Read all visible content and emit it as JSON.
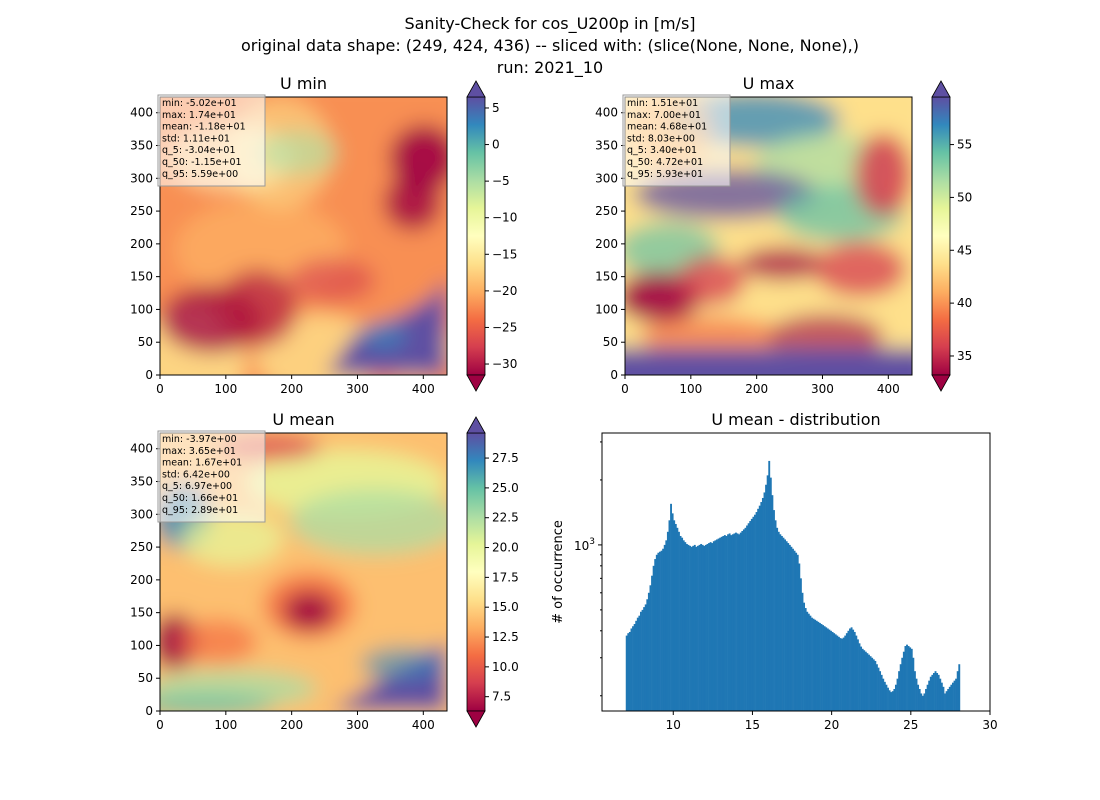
{
  "suptitle": [
    "Sanity-Check for cos_U200p in [m/s]",
    "original data shape: (249, 424, 436) -- sliced with: (slice(None, None, None),)",
    "run: 2021_10"
  ],
  "chart_data": [
    {
      "type": "heatmap",
      "title": "U min",
      "colormap": "Spectral",
      "xlim": [
        0,
        436
      ],
      "ylim": [
        0,
        424
      ],
      "xticks": [
        0,
        100,
        200,
        300,
        400
      ],
      "yticks": [
        0,
        50,
        100,
        150,
        200,
        250,
        300,
        350,
        400
      ],
      "colorbar": {
        "range": [
          -31.5,
          6.5
        ],
        "ticks": [
          5,
          0,
          -5,
          -10,
          -15,
          -20,
          -25,
          -30
        ],
        "tick_labels": [
          "5",
          "0",
          "−5",
          "−10",
          "−15",
          "−20",
          "−25",
          "−30"
        ],
        "extend": "both"
      },
      "stats": [
        "min: -5.02e+01",
        "max: 1.74e+01",
        "mean: -1.18e+01",
        "std: 1.11e+01",
        "q_5: -3.04e+01",
        "q_50: -1.15e+01",
        "q_95: 5.59e+00"
      ]
    },
    {
      "type": "heatmap",
      "title": "U max",
      "colormap": "Spectral",
      "xlim": [
        0,
        436
      ],
      "ylim": [
        0,
        424
      ],
      "xticks": [
        0,
        100,
        200,
        300,
        400
      ],
      "yticks": [
        0,
        50,
        100,
        150,
        200,
        250,
        300,
        350,
        400
      ],
      "colorbar": {
        "range": [
          33.2,
          59.5
        ],
        "ticks": [
          55,
          50,
          45,
          40,
          35
        ],
        "tick_labels": [
          "55",
          "50",
          "45",
          "40",
          "35"
        ],
        "extend": "both"
      },
      "stats": [
        "min: 1.51e+01",
        "max: 7.00e+01",
        "mean: 4.68e+01",
        "std: 8.03e+00",
        "q_5: 3.40e+01",
        "q_50: 4.72e+01",
        "q_95: 5.93e+01"
      ]
    },
    {
      "type": "heatmap",
      "title": "U mean",
      "colormap": "Spectral",
      "xlim": [
        0,
        436
      ],
      "ylim": [
        0,
        424
      ],
      "xticks": [
        0,
        100,
        200,
        300,
        400
      ],
      "yticks": [
        0,
        50,
        100,
        150,
        200,
        250,
        300,
        350,
        400
      ],
      "colorbar": {
        "range": [
          6.3,
          29.6
        ],
        "ticks": [
          27.5,
          25.0,
          22.5,
          20.0,
          17.5,
          15.0,
          12.5,
          10.0,
          7.5
        ],
        "tick_labels": [
          "27.5",
          "25.0",
          "22.5",
          "20.0",
          "17.5",
          "15.0",
          "12.5",
          "10.0",
          "7.5"
        ],
        "extend": "both"
      },
      "stats": [
        "min: -3.97e+00",
        "max: 3.65e+01",
        "mean: 1.67e+01",
        "std: 6.42e+00",
        "q_5: 6.97e+00",
        "q_50: 1.66e+01",
        "q_95: 2.89e+01"
      ]
    },
    {
      "type": "bar",
      "title": "U mean - distribution",
      "ylabel": "# of occurrence",
      "xlabel": "",
      "yscale": "log",
      "xlim": [
        5.5,
        30
      ],
      "ylim": [
        170,
        3300
      ],
      "xticks": [
        10,
        15,
        20,
        25,
        30
      ],
      "ytick_major": 1000,
      "bar_color": "#1f77b4",
      "bin_width": 0.1,
      "series": [
        {
          "x_start": 7.0,
          "values": [
            380,
            390,
            395,
            410,
            420,
            430,
            445,
            460,
            470,
            490,
            500,
            515,
            530,
            560,
            600,
            650,
            720,
            800,
            860,
            900,
            920,
            930,
            940,
            960,
            1000,
            1050,
            1150,
            1300,
            1550,
            1400,
            1300,
            1250,
            1200,
            1150,
            1100,
            1080,
            1050,
            1030,
            1010,
            1000,
            990,
            980,
            990,
            1000,
            980,
            990,
            1000,
            1010,
            1000,
            990,
            1000,
            1010,
            1020,
            1030,
            1020,
            1040,
            1050,
            1060,
            1070,
            1080,
            1090,
            1100,
            1110,
            1100,
            1120,
            1130,
            1110,
            1120,
            1130,
            1140,
            1130,
            1120,
            1140,
            1160,
            1180,
            1200,
            1230,
            1260,
            1290,
            1320,
            1350,
            1380,
            1420,
            1470,
            1520,
            1580,
            1650,
            1750,
            1900,
            2100,
            2450,
            2050,
            1700,
            1450,
            1300,
            1200,
            1150,
            1120,
            1100,
            1080,
            1060,
            1040,
            1020,
            1000,
            980,
            960,
            940,
            920,
            900,
            820,
            700,
            600,
            540,
            510,
            490,
            480,
            470,
            460,
            455,
            450,
            445,
            440,
            435,
            430,
            425,
            420,
            415,
            410,
            405,
            400,
            395,
            390,
            385,
            380,
            375,
            370,
            368,
            372,
            380,
            390,
            400,
            410,
            415,
            405,
            395,
            380,
            365,
            350,
            338,
            330,
            325,
            320,
            315,
            310,
            305,
            300,
            295,
            290,
            280,
            270,
            260,
            250,
            240,
            232,
            225,
            218,
            212,
            208,
            210,
            215,
            225,
            240,
            260,
            280,
            300,
            320,
            340,
            345,
            340,
            335,
            330,
            300,
            260,
            240,
            225,
            215,
            205,
            200,
            205,
            215,
            225,
            235,
            245,
            250,
            255,
            260,
            255,
            250,
            240,
            230,
            220,
            205,
            210,
            215,
            220,
            225,
            230,
            235,
            240,
            260,
            280
          ]
        }
      ]
    }
  ]
}
